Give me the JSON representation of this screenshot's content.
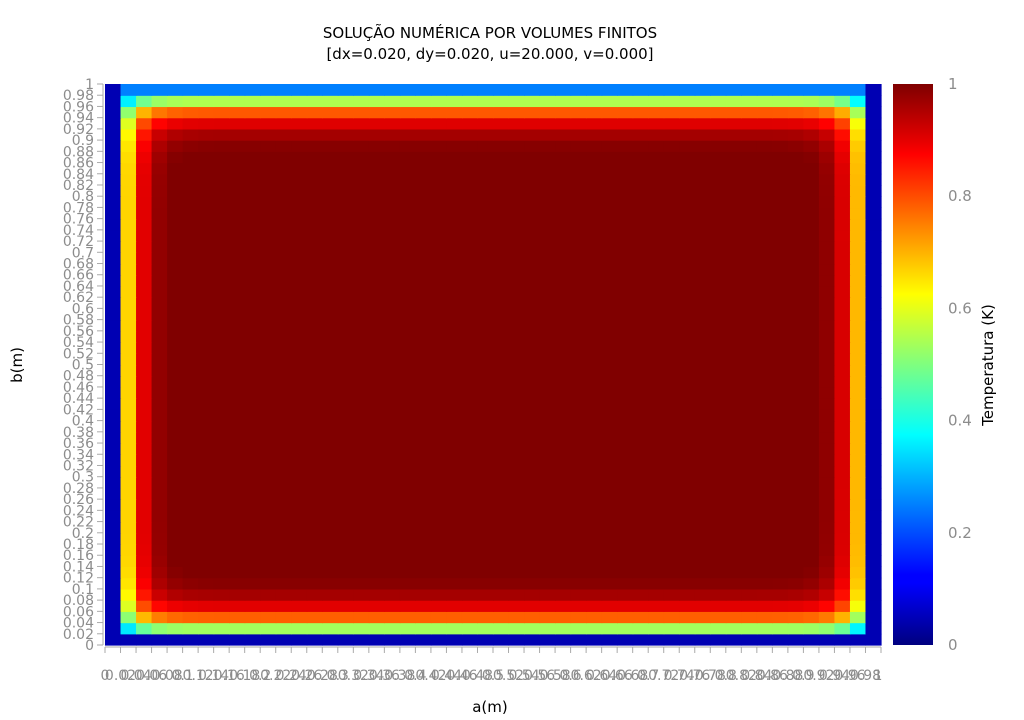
{
  "chart_data": {
    "type": "heatmap",
    "title": "SOLUÇÃO NUMÉRICA POR VOLUMES FINITOS",
    "subtitle": "[dx=0.020, dy=0.020, u=20.000, v=0.000]",
    "xlabel": "a(m)",
    "ylabel": "b(m)",
    "colorbar_label": "Temperatura (K)",
    "colormap": "jet",
    "xlim": [
      0,
      1
    ],
    "ylim": [
      0,
      1
    ],
    "zlim": [
      0,
      1
    ],
    "grid": false,
    "colorbar_placement": "right",
    "nx": 50,
    "ny": 50,
    "dx": 0.02,
    "dy": 0.02,
    "x_ticks": [
      "0",
      "0.02",
      "0.04",
      "0.06",
      "0.08",
      "0.1",
      "0.12",
      "0.14",
      "0.16",
      "0.18",
      "0.2",
      "0.22",
      "0.24",
      "0.26",
      "0.28",
      "0.3",
      "0.32",
      "0.34",
      "0.36",
      "0.38",
      "0.4",
      "0.42",
      "0.44",
      "0.46",
      "0.48",
      "0.5",
      "0.52",
      "0.54",
      "0.56",
      "0.58",
      "0.6",
      "0.62",
      "0.64",
      "0.66",
      "0.68",
      "0.7",
      "0.72",
      "0.74",
      "0.76",
      "0.78",
      "0.8",
      "0.82",
      "0.84",
      "0.86",
      "0.88",
      "0.9",
      "0.92",
      "0.94",
      "0.96",
      "0.98",
      "1"
    ],
    "y_ticks": [
      "0",
      "0.02",
      "0.04",
      "0.06",
      "0.08",
      "0.1",
      "0.12",
      "0.14",
      "0.16",
      "0.18",
      "0.2",
      "0.22",
      "0.24",
      "0.26",
      "0.28",
      "0.3",
      "0.32",
      "0.34",
      "0.36",
      "0.38",
      "0.4",
      "0.42",
      "0.44",
      "0.46",
      "0.48",
      "0.5",
      "0.52",
      "0.54",
      "0.56",
      "0.58",
      "0.6",
      "0.62",
      "0.64",
      "0.66",
      "0.68",
      "0.7",
      "0.72",
      "0.74",
      "0.76",
      "0.78",
      "0.8",
      "0.82",
      "0.84",
      "0.86",
      "0.88",
      "0.9",
      "0.92",
      "0.94",
      "0.96",
      "0.98",
      "1"
    ],
    "colorbar_ticks": [
      "0",
      "0.2",
      "0.4",
      "0.6",
      "0.8",
      "1"
    ],
    "boundary_values": {
      "left_column": 0.05,
      "right_column": 0.05,
      "top_row": 0.25,
      "bottom_row": 0.05,
      "interior": 1.0
    }
  }
}
